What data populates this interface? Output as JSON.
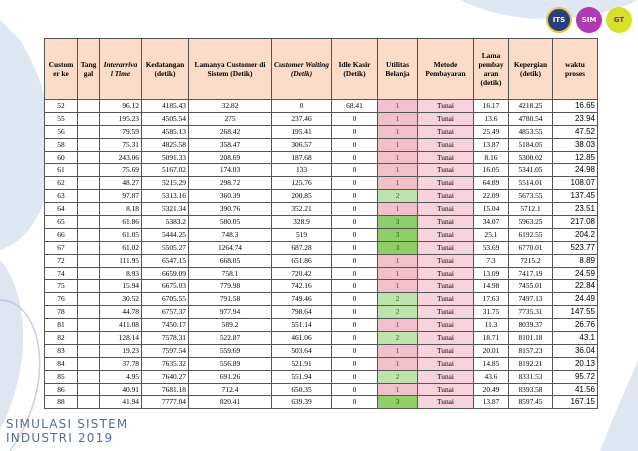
{
  "header": {
    "customer_ke": "Custom er ke",
    "tanggal": "Tang gal",
    "interarrival": "Interarriva l Time",
    "kedatangan": "Kedatangan (detik)",
    "lama_customer": "Lamanya Customer di Sistem (Detik)",
    "customer_waiting": "Customer Waiting (Detik)",
    "idle_kasir": "Idle Kasir (Detik)",
    "utilitas": "Utilitas Belanja",
    "metode": "Metode Pembayaran",
    "lama_pembayaran": "Lama pembay aran (detik)",
    "kepergian": "Kepergian (detik)",
    "waktu_proses": "waktu proses"
  },
  "rows": [
    {
      "cust": "52",
      "tgl": "",
      "inter": "96.12",
      "ked": "4185.43",
      "lama": "32.82",
      "wait": "0",
      "idle": "68.41",
      "util": "1",
      "pay": "Tunai",
      "lp": "16.17",
      "pergi": "4218.25",
      "proses": "16.65"
    },
    {
      "cust": "55",
      "tgl": "",
      "inter": "195.23",
      "ked": "4505.54",
      "lama": "275",
      "wait": "237.46",
      "idle": "0",
      "util": "1",
      "pay": "Tunai",
      "lp": "13.6",
      "pergi": "4780.54",
      "proses": "23.94"
    },
    {
      "cust": "56",
      "tgl": "",
      "inter": "79.59",
      "ked": "4585.13",
      "lama": "268.42",
      "wait": "195.41",
      "idle": "0",
      "util": "1",
      "pay": "Tunai",
      "lp": "25.49",
      "pergi": "4853.55",
      "proses": "47.52"
    },
    {
      "cust": "58",
      "tgl": "",
      "inter": "75.31",
      "ked": "4825.58",
      "lama": "358.47",
      "wait": "306.57",
      "idle": "0",
      "util": "1",
      "pay": "Tunai",
      "lp": "13.87",
      "pergi": "5184.05",
      "proses": "38.03"
    },
    {
      "cust": "60",
      "tgl": "",
      "inter": "243.06",
      "ked": "5091.33",
      "lama": "208.69",
      "wait": "187.68",
      "idle": "0",
      "util": "1",
      "pay": "Tunai",
      "lp": "8.16",
      "pergi": "5300.02",
      "proses": "12.85"
    },
    {
      "cust": "61",
      "tgl": "",
      "inter": "75.69",
      "ked": "5167.02",
      "lama": "174.03",
      "wait": "133",
      "idle": "0",
      "util": "1",
      "pay": "Tunai",
      "lp": "16.05",
      "pergi": "5341.05",
      "proses": "24.98"
    },
    {
      "cust": "62",
      "tgl": "",
      "inter": "48.27",
      "ked": "5215.29",
      "lama": "298.72",
      "wait": "125.76",
      "idle": "0",
      "util": "1",
      "pay": "Tunai",
      "lp": "64.89",
      "pergi": "5514.01",
      "proses": "108.07"
    },
    {
      "cust": "63",
      "tgl": "",
      "inter": "97.87",
      "ked": "5313.16",
      "lama": "360.39",
      "wait": "200.85",
      "idle": "0",
      "util": "2",
      "pay": "Tunai",
      "lp": "22.09",
      "pergi": "5673.55",
      "proses": "137.45"
    },
    {
      "cust": "64",
      "tgl": "",
      "inter": "8.18",
      "ked": "5321.34",
      "lama": "390.76",
      "wait": "352.21",
      "idle": "0",
      "util": "1",
      "pay": "Tunai",
      "lp": "15.04",
      "pergi": "5712.1",
      "proses": "23.51"
    },
    {
      "cust": "65",
      "tgl": "",
      "inter": "61.86",
      "ked": "5383.2",
      "lama": "580.05",
      "wait": "328.9",
      "idle": "0",
      "util": "3",
      "pay": "Tunai",
      "lp": "34.07",
      "pergi": "5963.25",
      "proses": "217.08"
    },
    {
      "cust": "66",
      "tgl": "",
      "inter": "61.05",
      "ked": "5444.25",
      "lama": "748.3",
      "wait": "519",
      "idle": "0",
      "util": "3",
      "pay": "Tunai",
      "lp": "25.1",
      "pergi": "6192.55",
      "proses": "204.2"
    },
    {
      "cust": "67",
      "tgl": "",
      "inter": "61.02",
      "ked": "5505.27",
      "lama": "1264.74",
      "wait": "687.28",
      "idle": "0",
      "util": "3",
      "pay": "Tunai",
      "lp": "53.69",
      "pergi": "6770.01",
      "proses": "523.77"
    },
    {
      "cust": "72",
      "tgl": "",
      "inter": "111.95",
      "ked": "6547.15",
      "lama": "668.05",
      "wait": "651.86",
      "idle": "0",
      "util": "1",
      "pay": "Tunai",
      "lp": "7.3",
      "pergi": "7215.2",
      "proses": "8.89"
    },
    {
      "cust": "74",
      "tgl": "",
      "inter": "8.93",
      "ked": "6659.09",
      "lama": "758.1",
      "wait": "720.42",
      "idle": "0",
      "util": "1",
      "pay": "Tunai",
      "lp": "13.09",
      "pergi": "7417.19",
      "proses": "24.59"
    },
    {
      "cust": "75",
      "tgl": "",
      "inter": "15.94",
      "ked": "6675.03",
      "lama": "779.98",
      "wait": "742.16",
      "idle": "0",
      "util": "1",
      "pay": "Tunai",
      "lp": "14.98",
      "pergi": "7455.01",
      "proses": "22.84"
    },
    {
      "cust": "76",
      "tgl": "",
      "inter": "30.52",
      "ked": "6705.55",
      "lama": "791.58",
      "wait": "749.46",
      "idle": "0",
      "util": "2",
      "pay": "Tunai",
      "lp": "17.63",
      "pergi": "7497.13",
      "proses": "24.49"
    },
    {
      "cust": "78",
      "tgl": "",
      "inter": "44.78",
      "ked": "6757.37",
      "lama": "977.94",
      "wait": "798.64",
      "idle": "0",
      "util": "2",
      "pay": "Tunai",
      "lp": "31.75",
      "pergi": "7735.31",
      "proses": "147.55"
    },
    {
      "cust": "81",
      "tgl": "",
      "inter": "411.08",
      "ked": "7450.17",
      "lama": "589.2",
      "wait": "551.14",
      "idle": "0",
      "util": "1",
      "pay": "Tunai",
      "lp": "11.3",
      "pergi": "8039.37",
      "proses": "26.76"
    },
    {
      "cust": "82",
      "tgl": "",
      "inter": "128.14",
      "ked": "7578.31",
      "lama": "522.87",
      "wait": "461.06",
      "idle": "0",
      "util": "2",
      "pay": "Tunai",
      "lp": "18.71",
      "pergi": "8101.18",
      "proses": "43.1"
    },
    {
      "cust": "83",
      "tgl": "",
      "inter": "19.23",
      "ked": "7597.54",
      "lama": "559.69",
      "wait": "503.64",
      "idle": "0",
      "util": "1",
      "pay": "Tunai",
      "lp": "20.01",
      "pergi": "8157.23",
      "proses": "36.04"
    },
    {
      "cust": "84",
      "tgl": "",
      "inter": "37.78",
      "ked": "7635.32",
      "lama": "556.89",
      "wait": "521.91",
      "idle": "0",
      "util": "1",
      "pay": "Tunai",
      "lp": "14.85",
      "pergi": "8192.21",
      "proses": "20.13"
    },
    {
      "cust": "85",
      "tgl": "",
      "inter": "4.95",
      "ked": "7640.27",
      "lama": "691.26",
      "wait": "551.94",
      "idle": "0",
      "util": "2",
      "pay": "Tunai",
      "lp": "43.6",
      "pergi": "8331.53",
      "proses": "95.72"
    },
    {
      "cust": "86",
      "tgl": "",
      "inter": "40.91",
      "ked": "7681.18",
      "lama": "712.4",
      "wait": "650.35",
      "idle": "0",
      "util": "1",
      "pay": "Tunai",
      "lp": "20.49",
      "pergi": "8393.58",
      "proses": "41.56"
    },
    {
      "cust": "88",
      "tgl": "",
      "inter": "41.94",
      "ked": "7777.04",
      "lama": "820.41",
      "wait": "639.39",
      "idle": "0",
      "util": "3",
      "pay": "Tunai",
      "lp": "13.87",
      "pergi": "8597.45",
      "proses": "167.15"
    }
  ],
  "brand": {
    "line1": "SIMULASI SISTEM",
    "line2": "INDUSTRI 2019"
  },
  "logos": [
    {
      "icon": "university-seal-icon",
      "text": "ITS"
    },
    {
      "icon": "lab-logo-icon",
      "text": "SIM"
    },
    {
      "icon": "team-logo-icon",
      "text": "GT"
    }
  ],
  "colors": {
    "header_bg": "#fbdcc8",
    "util_1": "#f2c0cb",
    "util_2": "#bfe3ac",
    "util_3": "#8fcf6a",
    "accent": "#5b6b9a"
  }
}
